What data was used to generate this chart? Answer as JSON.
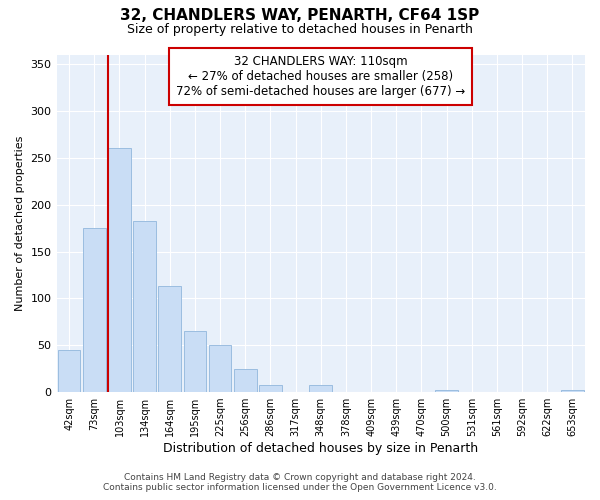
{
  "title": "32, CHANDLERS WAY, PENARTH, CF64 1SP",
  "subtitle": "Size of property relative to detached houses in Penarth",
  "xlabel": "Distribution of detached houses by size in Penarth",
  "ylabel": "Number of detached properties",
  "bar_labels": [
    "42sqm",
    "73sqm",
    "103sqm",
    "134sqm",
    "164sqm",
    "195sqm",
    "225sqm",
    "256sqm",
    "286sqm",
    "317sqm",
    "348sqm",
    "378sqm",
    "409sqm",
    "439sqm",
    "470sqm",
    "500sqm",
    "531sqm",
    "561sqm",
    "592sqm",
    "622sqm",
    "653sqm"
  ],
  "bar_values": [
    45,
    175,
    261,
    183,
    113,
    65,
    50,
    25,
    8,
    0,
    8,
    0,
    0,
    0,
    0,
    2,
    0,
    0,
    0,
    0,
    2
  ],
  "bar_color": "#c9ddf5",
  "bar_edge_color": "#9bbde0",
  "plot_bg_color": "#e8f0fa",
  "grid_color": "#ffffff",
  "vline_x": 2,
  "vline_color": "#cc0000",
  "annotation_line1": "32 CHANDLERS WAY: 110sqm",
  "annotation_line2": "← 27% of detached houses are smaller (258)",
  "annotation_line3": "72% of semi-detached houses are larger (677) →",
  "annotation_box_color": "#ffffff",
  "annotation_box_edge": "#cc0000",
  "ylim": [
    0,
    360
  ],
  "yticks": [
    0,
    50,
    100,
    150,
    200,
    250,
    300,
    350
  ],
  "footer_line1": "Contains HM Land Registry data © Crown copyright and database right 2024.",
  "footer_line2": "Contains public sector information licensed under the Open Government Licence v3.0.",
  "background_color": "#ffffff"
}
